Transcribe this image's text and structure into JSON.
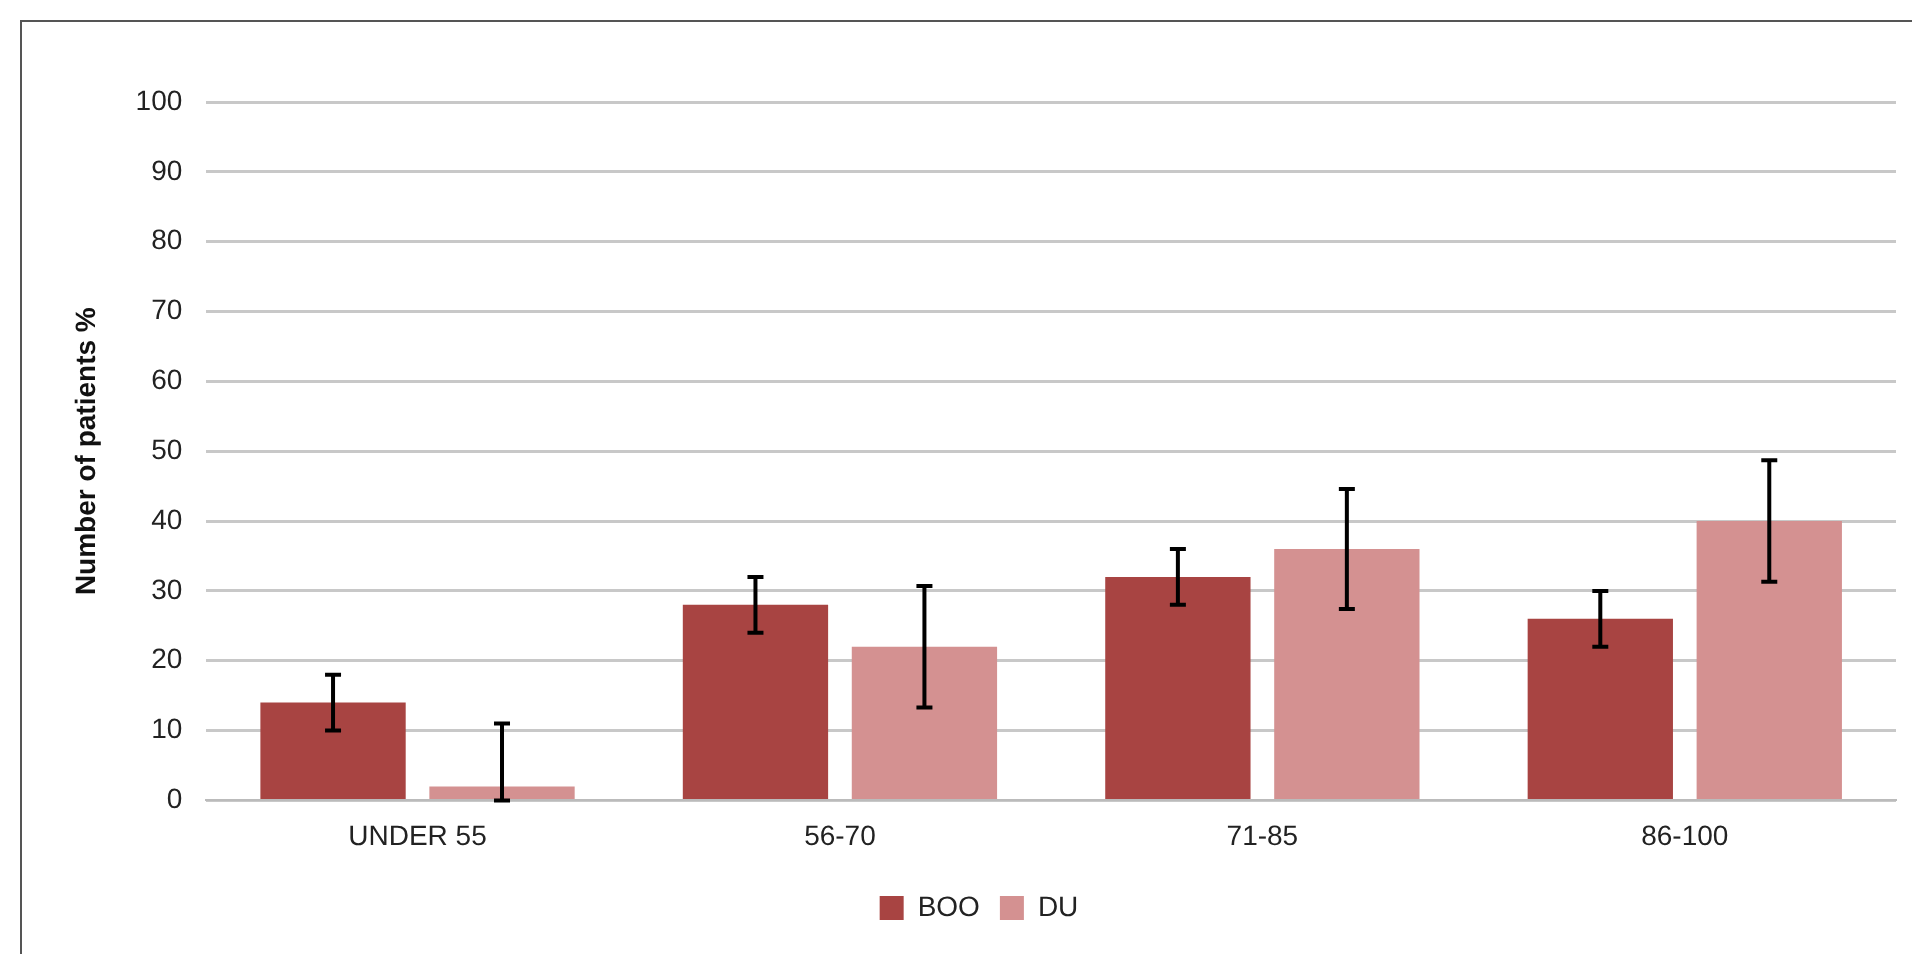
{
  "chart_data": {
    "type": "bar",
    "ylabel": "Number of patients %",
    "categories": [
      "UNDER 55",
      "56-70",
      "71-85",
      "86-100"
    ],
    "series": [
      {
        "name": "BOO",
        "color": "#a84442",
        "values": [
          14,
          28,
          32,
          26
        ],
        "errors": [
          4,
          4,
          4,
          4
        ]
      },
      {
        "name": "DU",
        "color": "#d49191",
        "values": [
          2,
          22,
          36,
          40
        ],
        "errors": [
          [
            0,
            11
          ],
          8.7,
          8.6,
          8.7
        ]
      }
    ],
    "ylim": [
      0,
      100
    ],
    "yticks": [
      0,
      10,
      20,
      30,
      40,
      50,
      60,
      70,
      80,
      90,
      100
    ],
    "grid": "y",
    "legend": "bottom"
  }
}
